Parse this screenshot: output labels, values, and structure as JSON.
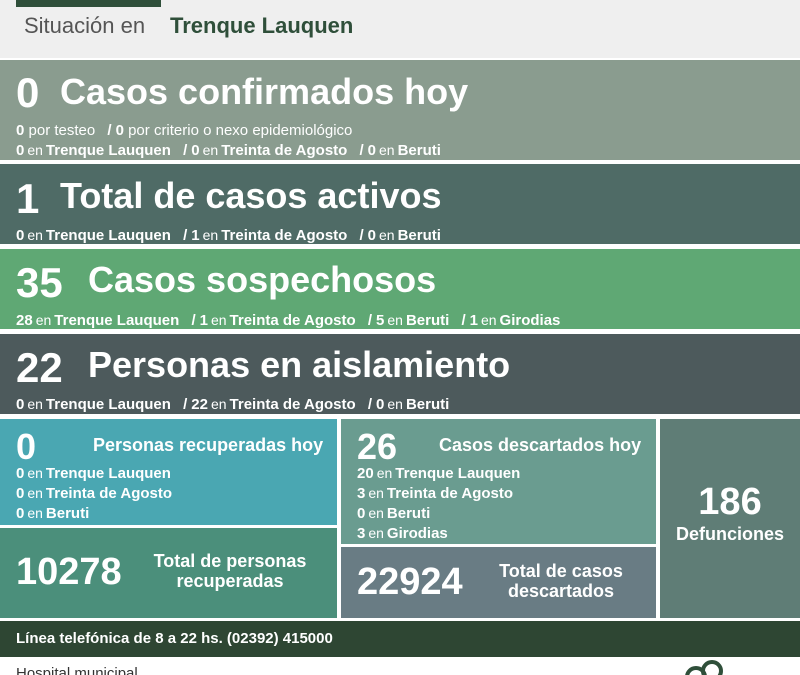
{
  "header": {
    "lead": "Situación en",
    "city": "Trenque Lauquen"
  },
  "confirmados": {
    "count": "0",
    "title": "Casos confirmados hoy",
    "line1": {
      "a_num": "0",
      "a_text": "por testeo",
      "b_num": "0",
      "b_text": "por criterio o nexo epidemiológico"
    },
    "line2": [
      {
        "num": "0",
        "en": "en",
        "place": "Trenque Lauquen"
      },
      {
        "num": "0",
        "en": "en",
        "place": "Treinta de Agosto"
      },
      {
        "num": "0",
        "en": "en",
        "place": "Beruti"
      }
    ]
  },
  "activos": {
    "count": "1",
    "title": "Total de casos activos",
    "line": [
      {
        "num": "0",
        "en": "en",
        "place": "Trenque Lauquen"
      },
      {
        "num": "1",
        "en": "en",
        "place": "Treinta de Agosto"
      },
      {
        "num": "0",
        "en": "en",
        "place": "Beruti"
      }
    ]
  },
  "sospechosos": {
    "count": "35",
    "title": "Casos sospechosos",
    "line": [
      {
        "num": "28",
        "en": "en",
        "place": "Trenque Lauquen"
      },
      {
        "num": "1",
        "en": "en",
        "place": "Treinta de Agosto"
      },
      {
        "num": "5",
        "en": "en",
        "place": "Beruti"
      },
      {
        "num": "1",
        "en": "en",
        "place": "Girodias"
      }
    ]
  },
  "aislamiento": {
    "count": "22",
    "title": "Personas en aislamiento",
    "line": [
      {
        "num": "0",
        "en": "en",
        "place": "Trenque Lauquen"
      },
      {
        "num": "22",
        "en": "en",
        "place": "Treinta de Agosto"
      },
      {
        "num": "0",
        "en": "en",
        "place": "Beruti"
      }
    ]
  },
  "recuperadas_hoy": {
    "count": "0",
    "title": "Personas recuperadas hoy",
    "rows": [
      {
        "num": "0",
        "en": "en",
        "place": "Trenque Lauquen"
      },
      {
        "num": "0",
        "en": "en",
        "place": "Treinta de Agosto"
      },
      {
        "num": "0",
        "en": "en",
        "place": "Beruti"
      }
    ]
  },
  "recuperadas_total": {
    "count": "10278",
    "title_1": "Total de personas",
    "title_2": "recuperadas"
  },
  "descartados_hoy": {
    "count": "26",
    "title": "Casos descartados hoy",
    "rows": [
      {
        "num": "20",
        "en": "en",
        "place": "Trenque Lauquen"
      },
      {
        "num": "3",
        "en": "en",
        "place": "Treinta de Agosto"
      },
      {
        "num": "0",
        "en": "en",
        "place": "Beruti"
      },
      {
        "num": "3",
        "en": "en",
        "place": "Girodias"
      }
    ]
  },
  "descartados_total": {
    "count": "22924",
    "title_1": "Total de casos",
    "title_2": "descartados"
  },
  "defunciones": {
    "count": "186",
    "label": "Defunciones"
  },
  "phone": {
    "text": "Línea telefónica de 8 a 22 hs. (02392) 415000"
  },
  "footer": {
    "text": "Hospital municipal"
  },
  "separator": "/",
  "colors": {
    "confirmados": "#8a9c8f",
    "activos": "#4f6b66",
    "sospechosos": "#5fa874",
    "aislamiento": "#4d5a5c",
    "recuperadas_hoy": "#4aa7b2",
    "recuperadas_total": "#4b8f7b",
    "descartados_hoy": "#6a9c90",
    "descartados_total": "#697c84",
    "defunciones": "#5f7d76",
    "phone_bar": "#2e4633"
  }
}
